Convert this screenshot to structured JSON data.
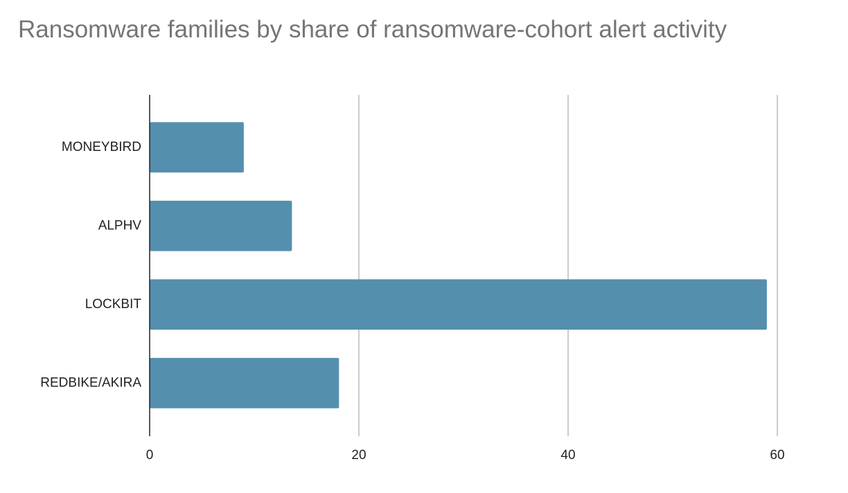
{
  "chart_data": {
    "type": "hbar",
    "title": "Ransomware families by share of ransomware-cohort alert activity",
    "categories": [
      "MONEYBIRD",
      "ALPHV",
      "LOCKBIT",
      "REDBIKE/AKIRA"
    ],
    "values": [
      9,
      13.6,
      59,
      18.1
    ],
    "color": "#558fae",
    "xlim": [
      0,
      60
    ],
    "xticks": [
      0,
      20,
      40,
      60
    ],
    "grid": true
  }
}
